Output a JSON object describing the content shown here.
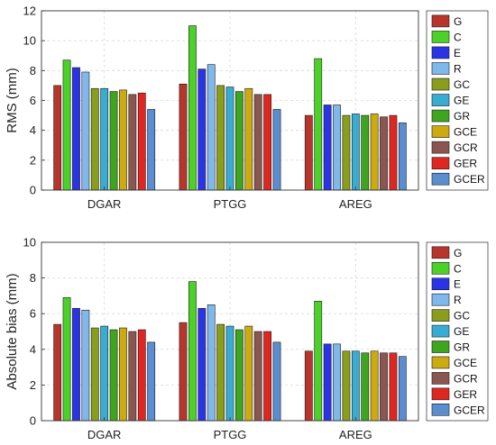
{
  "colors": {
    "G": "#b8352c",
    "C": "#4cd128",
    "E": "#2a34e6",
    "R": "#7fb9ec",
    "GC": "#8a9e1c",
    "GE": "#38acd2",
    "GR": "#3ea51e",
    "GCE": "#ccaa10",
    "GCR": "#8b5650",
    "GER": "#e02620",
    "GCER": "#5a8ed0"
  },
  "chart_data": [
    {
      "type": "bar",
      "categories": [
        "DGAR",
        "PTGG",
        "AREG"
      ],
      "ylabel": "RMS (mm)",
      "ylim": [
        0,
        12
      ],
      "yticks": [
        0,
        2,
        4,
        6,
        8,
        10,
        12
      ],
      "grid": true,
      "legend_position": "right",
      "series": [
        {
          "name": "G",
          "values": [
            7.0,
            7.1,
            5.0
          ]
        },
        {
          "name": "C",
          "values": [
            8.7,
            11.0,
            8.8
          ]
        },
        {
          "name": "E",
          "values": [
            8.2,
            8.1,
            5.7
          ]
        },
        {
          "name": "R",
          "values": [
            7.9,
            8.4,
            5.7
          ]
        },
        {
          "name": "GC",
          "values": [
            6.8,
            7.0,
            5.0
          ]
        },
        {
          "name": "GE",
          "values": [
            6.8,
            6.9,
            5.1
          ]
        },
        {
          "name": "GR",
          "values": [
            6.6,
            6.6,
            5.0
          ]
        },
        {
          "name": "GCE",
          "values": [
            6.7,
            6.8,
            5.1
          ]
        },
        {
          "name": "GCR",
          "values": [
            6.4,
            6.4,
            4.9
          ]
        },
        {
          "name": "GER",
          "values": [
            6.5,
            6.4,
            5.0
          ]
        },
        {
          "name": "GCER",
          "values": [
            5.4,
            5.4,
            4.5
          ]
        }
      ]
    },
    {
      "type": "bar",
      "categories": [
        "DGAR",
        "PTGG",
        "AREG"
      ],
      "ylabel": "Absolute bias (mm)",
      "ylim": [
        0,
        10
      ],
      "yticks": [
        0,
        2,
        4,
        6,
        8,
        10
      ],
      "grid": true,
      "legend_position": "right",
      "series": [
        {
          "name": "G",
          "values": [
            5.4,
            5.5,
            3.9
          ]
        },
        {
          "name": "C",
          "values": [
            6.9,
            7.8,
            6.7
          ]
        },
        {
          "name": "E",
          "values": [
            6.3,
            6.3,
            4.3
          ]
        },
        {
          "name": "R",
          "values": [
            6.2,
            6.5,
            4.3
          ]
        },
        {
          "name": "GC",
          "values": [
            5.2,
            5.4,
            3.9
          ]
        },
        {
          "name": "GE",
          "values": [
            5.3,
            5.3,
            3.9
          ]
        },
        {
          "name": "GR",
          "values": [
            5.1,
            5.1,
            3.8
          ]
        },
        {
          "name": "GCE",
          "values": [
            5.2,
            5.3,
            3.9
          ]
        },
        {
          "name": "GCR",
          "values": [
            5.0,
            5.0,
            3.8
          ]
        },
        {
          "name": "GER",
          "values": [
            5.1,
            5.0,
            3.8
          ]
        },
        {
          "name": "GCER",
          "values": [
            4.4,
            4.4,
            3.6
          ]
        }
      ]
    }
  ]
}
